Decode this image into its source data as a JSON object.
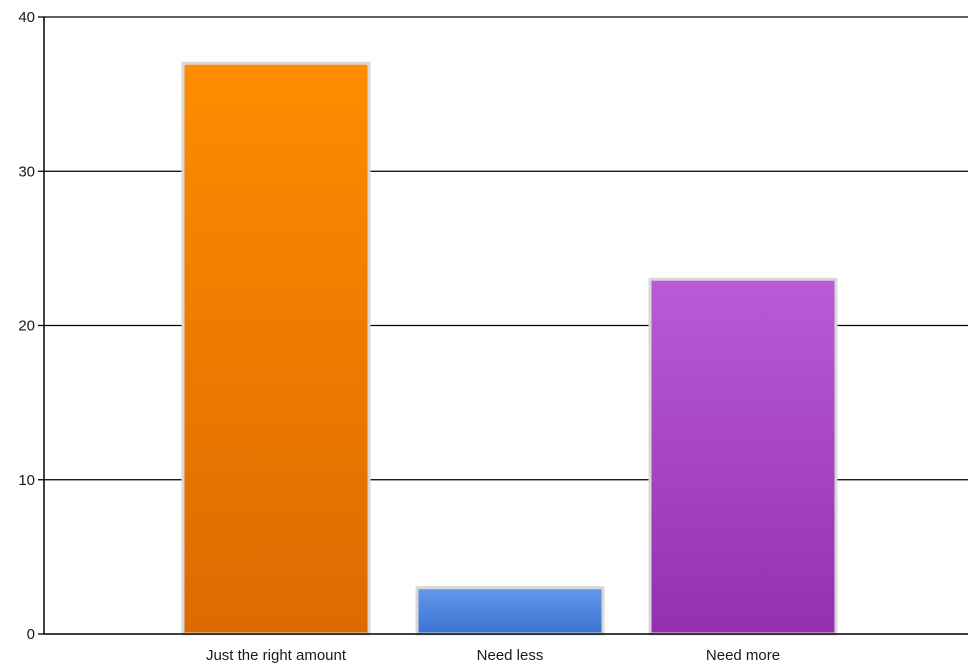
{
  "chart_data": {
    "type": "bar",
    "title": "",
    "xlabel": "",
    "ylabel": "",
    "categories": [
      "Just the right amount",
      "Need less",
      "Need more"
    ],
    "values": [
      37,
      3,
      23
    ],
    "ylim": [
      0,
      40
    ],
    "yticks": [
      0,
      10,
      20,
      30,
      40
    ],
    "grid": true,
    "legend": "none",
    "colors": [
      {
        "top": "#ff8c00",
        "bottom": "#dc6a00"
      },
      {
        "top": "#6498ec",
        "bottom": "#3a74cf"
      },
      {
        "top": "#b95bd9",
        "bottom": "#942fb0"
      }
    ],
    "bar_border_color": "#d8d8d8",
    "axis_color": "#000000",
    "grid_color": "#000000"
  }
}
